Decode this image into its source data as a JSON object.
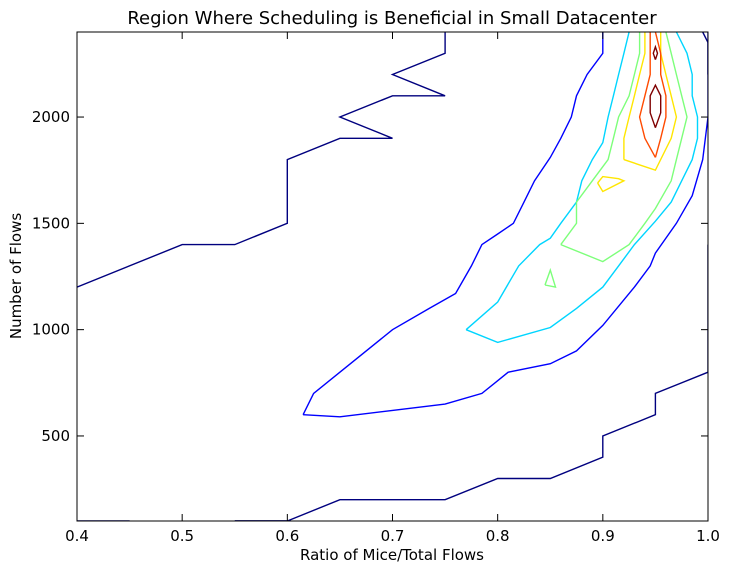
{
  "chart_data": {
    "type": "contour",
    "title": "Region Where Scheduling is Beneficial in Small Datacenter",
    "xlabel": "Ratio of Mice/Total Flows",
    "ylabel": "Number of Flows",
    "xlim": [
      0.4,
      1.0
    ],
    "ylim": [
      100,
      2400
    ],
    "xticks": [
      "0.4",
      "0.5",
      "0.6",
      "0.7",
      "0.8",
      "0.9",
      "1.0"
    ],
    "yticks": [
      "500",
      "1000",
      "1500",
      "2000"
    ],
    "grid": false,
    "legend": "none",
    "contours": [
      {
        "color": "#00007f",
        "segments": [
          [
            [
              0.4,
              1200
            ],
            [
              0.5,
              1400
            ],
            [
              0.55,
              1400
            ],
            [
              0.6,
              1500
            ],
            [
              0.6,
              1800
            ],
            [
              0.65,
              1900
            ],
            [
              0.7,
              1900
            ],
            [
              0.65,
              2000
            ],
            [
              0.7,
              2100
            ],
            [
              0.75,
              2100
            ],
            [
              0.7,
              2200
            ],
            [
              0.75,
              2300
            ],
            [
              0.75,
              2400
            ]
          ],
          [
            [
              0.55,
              100
            ],
            [
              0.6,
              100
            ],
            [
              0.65,
              200
            ],
            [
              0.75,
              200
            ],
            [
              0.8,
              300
            ],
            [
              0.85,
              300
            ],
            [
              0.9,
              400
            ],
            [
              0.9,
              500
            ],
            [
              0.95,
              600
            ],
            [
              0.95,
              700
            ],
            [
              1.0,
              800
            ]
          ],
          [
            [
              0.4,
              100
            ],
            [
              0.45,
              100
            ]
          ],
          [
            [
              0.6,
              100
            ],
            [
              0.55,
              100
            ]
          ],
          [
            [
              1.0,
              1400
            ],
            [
              1.0,
              800
            ]
          ],
          [
            [
              0.995,
              2400
            ],
            [
              1.0,
              2350
            ],
            [
              1.0,
              2200
            ]
          ]
        ]
      },
      {
        "color": "#0000ff",
        "segments": [
          [
            [
              0.615,
              600
            ],
            [
              0.625,
              700
            ],
            [
              0.65,
              800
            ],
            [
              0.7,
              1000
            ],
            [
              0.735,
              1100
            ],
            [
              0.76,
              1170
            ],
            [
              0.775,
              1300
            ],
            [
              0.785,
              1400
            ],
            [
              0.8,
              1450
            ],
            [
              0.815,
              1500
            ],
            [
              0.825,
              1600
            ],
            [
              0.835,
              1700
            ],
            [
              0.85,
              1810
            ],
            [
              0.86,
              1900
            ],
            [
              0.87,
              2000
            ],
            [
              0.875,
              2100
            ],
            [
              0.885,
              2200
            ],
            [
              0.9,
              2300
            ],
            [
              0.9,
              2400
            ]
          ],
          [
            [
              0.615,
              600
            ],
            [
              0.65,
              590
            ],
            [
              0.7,
              620
            ],
            [
              0.75,
              650
            ],
            [
              0.785,
              700
            ],
            [
              0.8,
              760
            ],
            [
              0.81,
              800
            ],
            [
              0.85,
              840
            ],
            [
              0.875,
              900
            ],
            [
              0.9,
              1020
            ],
            [
              0.93,
              1200
            ],
            [
              0.945,
              1300
            ],
            [
              0.95,
              1360
            ],
            [
              0.97,
              1500
            ],
            [
              0.985,
              1630
            ],
            [
              0.995,
              1800
            ],
            [
              1.0,
              2000
            ],
            [
              1.0,
              2400
            ]
          ]
        ]
      },
      {
        "color": "#00d5ff",
        "segments": [
          [
            [
              0.77,
              1000
            ],
            [
              0.8,
              1130
            ],
            [
              0.82,
              1300
            ],
            [
              0.84,
              1400
            ],
            [
              0.85,
              1430
            ],
            [
              0.86,
              1500
            ],
            [
              0.875,
              1600
            ],
            [
              0.88,
              1700
            ],
            [
              0.89,
              1800
            ],
            [
              0.9,
              1880
            ],
            [
              0.905,
              2000
            ],
            [
              0.91,
              2100
            ],
            [
              0.915,
              2200
            ],
            [
              0.92,
              2300
            ],
            [
              0.925,
              2400
            ]
          ],
          [
            [
              0.77,
              1000
            ],
            [
              0.8,
              940
            ],
            [
              0.85,
              1010
            ],
            [
              0.875,
              1100
            ],
            [
              0.9,
              1200
            ],
            [
              0.915,
              1300
            ],
            [
              0.93,
              1400
            ],
            [
              0.95,
              1510
            ],
            [
              0.965,
              1600
            ],
            [
              0.975,
              1700
            ],
            [
              0.985,
              1800
            ],
            [
              0.99,
              1900
            ],
            [
              0.99,
              2000
            ],
            [
              0.985,
              2100
            ],
            [
              0.985,
              2200
            ],
            [
              0.98,
              2300
            ],
            [
              0.97,
              2400
            ]
          ]
        ]
      },
      {
        "color": "#7dff7a",
        "segments": [
          [
            [
              0.86,
              1400
            ],
            [
              0.875,
              1500
            ],
            [
              0.875,
              1600
            ],
            [
              0.89,
              1700
            ],
            [
              0.905,
              1800
            ],
            [
              0.91,
              1900
            ],
            [
              0.915,
              2000
            ],
            [
              0.925,
              2100
            ],
            [
              0.93,
              2200
            ],
            [
              0.935,
              2300
            ],
            [
              0.935,
              2400
            ]
          ],
          [
            [
              0.86,
              1400
            ],
            [
              0.9,
              1320
            ],
            [
              0.925,
              1400
            ],
            [
              0.94,
              1500
            ],
            [
              0.95,
              1570
            ],
            [
              0.965,
              1700
            ],
            [
              0.97,
              1800
            ],
            [
              0.975,
              1900
            ],
            [
              0.98,
              2000
            ],
            [
              0.975,
              2100
            ],
            [
              0.97,
              2200
            ],
            [
              0.965,
              2300
            ],
            [
              0.96,
              2400
            ]
          ],
          [
            [
              0.845,
              1210
            ],
            [
              0.85,
              1280
            ],
            [
              0.855,
              1200
            ],
            [
              0.845,
              1210
            ]
          ]
        ]
      },
      {
        "color": "#ffe600",
        "segments": [
          [
            [
              0.92,
              1800
            ],
            [
              0.92,
              1900
            ],
            [
              0.925,
              2000
            ],
            [
              0.93,
              2100
            ],
            [
              0.935,
              2200
            ],
            [
              0.94,
              2300
            ],
            [
              0.94,
              2400
            ]
          ],
          [
            [
              0.92,
              1800
            ],
            [
              0.95,
              1750
            ],
            [
              0.965,
              1900
            ],
            [
              0.97,
              2000
            ],
            [
              0.965,
              2100
            ],
            [
              0.96,
              2200
            ],
            [
              0.955,
              2300
            ],
            [
              0.955,
              2400
            ]
          ],
          [
            [
              0.895,
              1690
            ],
            [
              0.9,
              1720
            ],
            [
              0.915,
              1710
            ],
            [
              0.92,
              1700
            ],
            [
              0.9,
              1650
            ],
            [
              0.895,
              1690
            ]
          ]
        ]
      },
      {
        "color": "#ff4a00",
        "segments": [
          [
            [
              0.95,
              1810
            ],
            [
              0.94,
              1900
            ],
            [
              0.935,
              2000
            ],
            [
              0.94,
              2100
            ],
            [
              0.945,
              2200
            ],
            [
              0.945,
              2300
            ],
            [
              0.945,
              2400
            ]
          ],
          [
            [
              0.95,
              1810
            ],
            [
              0.955,
              1900
            ],
            [
              0.96,
              2000
            ],
            [
              0.96,
              2100
            ],
            [
              0.955,
              2200
            ],
            [
              0.955,
              2300
            ],
            [
              0.95,
              2400
            ]
          ]
        ]
      },
      {
        "color": "#7f0000",
        "segments": [
          [
            [
              0.95,
              1950
            ],
            [
              0.945,
              2020
            ],
            [
              0.945,
              2100
            ],
            [
              0.95,
              2150
            ],
            [
              0.955,
              2100
            ],
            [
              0.955,
              2020
            ],
            [
              0.95,
              1950
            ]
          ],
          [
            [
              0.95,
              2270
            ],
            [
              0.948,
              2300
            ],
            [
              0.95,
              2330
            ],
            [
              0.952,
              2300
            ],
            [
              0.95,
              2270
            ]
          ]
        ]
      }
    ]
  }
}
